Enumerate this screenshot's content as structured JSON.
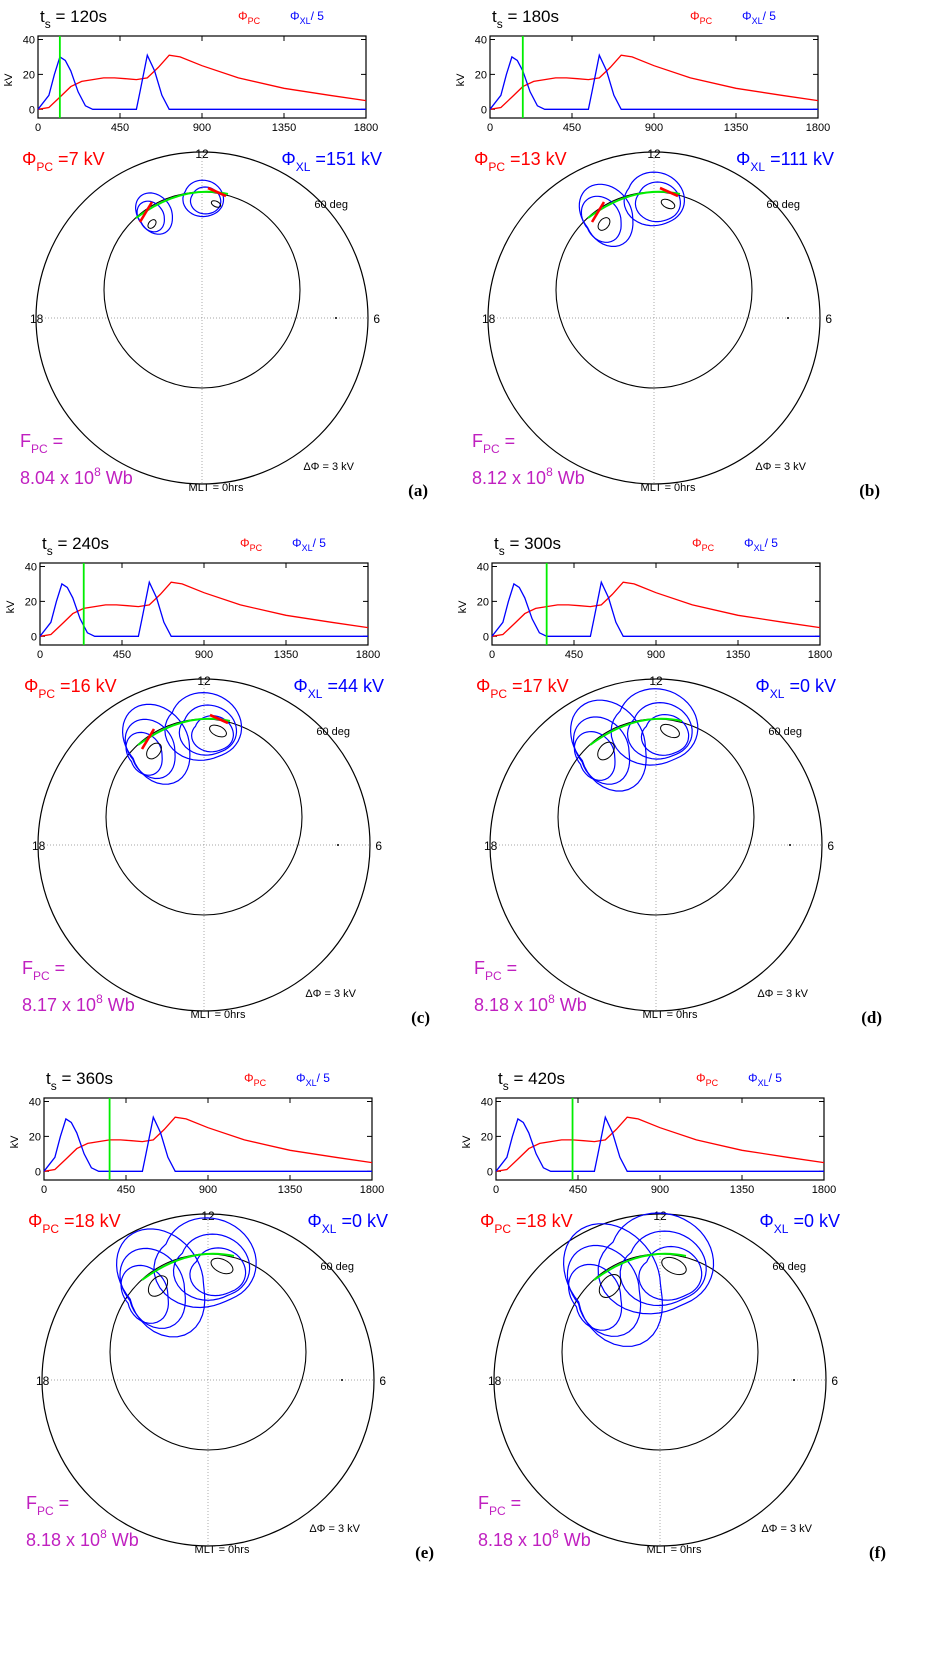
{
  "common": {
    "clock_top": "12",
    "clock_left": "18",
    "clock_right": "6",
    "lat_label": "60 deg",
    "mlt_label": "MLT = 0hrs",
    "delta_label": "ΔΦ = 3 kV",
    "fpc_label": "F",
    "fpc_sub": "PC",
    "fpc_eq": " =",
    "fpc_unit": " Wb",
    "phi": "Φ",
    "pc_sub": "PC",
    "xl_sub": "XL",
    "kv": " kV",
    "legend_pc_sym": "Φ",
    "legend_pc_sub": "PC",
    "legend_xl_sym": "Φ",
    "legend_xl_sub": "XL",
    "legend_xl_div": "/ 5",
    "ts_t": "t",
    "ts_sub": "s",
    "ts_eq": " = ",
    "ts_unit": "s",
    "ylabel": "kV",
    "colors": {
      "pc": "#ff0000",
      "xl": "#0000ff",
      "marker": "#00ee00",
      "fpc": "#c020c0"
    }
  },
  "chart_data": [
    {
      "panel": "(a)",
      "ts": "120",
      "phi_pc": "7",
      "phi_xl": "151",
      "fpc_mant": "8.04 x 10",
      "fpc_exp": "8",
      "type": "line",
      "xlim": [
        0,
        1800
      ],
      "ylim": [
        -5,
        42
      ],
      "xticks": [
        "0",
        "450",
        "900",
        "1350",
        "1800"
      ],
      "yticks": [
        "0",
        "20",
        "40"
      ],
      "marker_x": 120,
      "series": [
        {
          "name": "Φ_PC",
          "x": [
            0,
            60,
            120,
            180,
            240,
            300,
            360,
            420,
            480,
            540,
            600,
            660,
            720,
            780,
            900,
            1100,
            1350,
            1600,
            1800
          ],
          "y": [
            0,
            1,
            7,
            13,
            16,
            17,
            18,
            18,
            17.5,
            17,
            18,
            24,
            31,
            30,
            25,
            18,
            12,
            8,
            5
          ]
        },
        {
          "name": "Φ_XL / 5",
          "x": [
            0,
            60,
            90,
            120,
            150,
            180,
            220,
            260,
            300,
            540,
            560,
            600,
            640,
            680,
            720,
            1800
          ],
          "y": [
            0,
            8,
            20,
            30,
            28,
            22,
            10,
            2,
            0,
            0,
            10,
            31,
            22,
            8,
            0,
            0
          ]
        }
      ]
    },
    {
      "panel": "(b)",
      "ts": "180",
      "phi_pc": "13",
      "phi_xl": "111",
      "fpc_mant": "8.12 x 10",
      "fpc_exp": "8",
      "type": "line",
      "xlim": [
        0,
        1800
      ],
      "ylim": [
        -5,
        42
      ],
      "xticks": [
        "0",
        "450",
        "900",
        "1350",
        "1800"
      ],
      "yticks": [
        "0",
        "20",
        "40"
      ],
      "marker_x": 180,
      "series": [
        {
          "name": "Φ_PC",
          "x": [
            0,
            60,
            120,
            180,
            240,
            300,
            360,
            420,
            480,
            540,
            600,
            660,
            720,
            780,
            900,
            1100,
            1350,
            1600,
            1800
          ],
          "y": [
            0,
            1,
            7,
            13,
            16,
            17,
            18,
            18,
            17.5,
            17,
            18,
            24,
            31,
            30,
            25,
            18,
            12,
            8,
            5
          ]
        },
        {
          "name": "Φ_XL / 5",
          "x": [
            0,
            60,
            90,
            120,
            150,
            180,
            220,
            260,
            300,
            540,
            560,
            600,
            640,
            680,
            720,
            1800
          ],
          "y": [
            0,
            8,
            20,
            30,
            28,
            22,
            10,
            2,
            0,
            0,
            10,
            31,
            22,
            8,
            0,
            0
          ]
        }
      ]
    },
    {
      "panel": "(c)",
      "ts": "240",
      "phi_pc": "16",
      "phi_xl": "44",
      "fpc_mant": "8.17 x 10",
      "fpc_exp": "8",
      "type": "line",
      "xlim": [
        0,
        1800
      ],
      "ylim": [
        -5,
        42
      ],
      "xticks": [
        "0",
        "450",
        "900",
        "1350",
        "1800"
      ],
      "yticks": [
        "0",
        "20",
        "40"
      ],
      "marker_x": 240,
      "series": [
        {
          "name": "Φ_PC",
          "x": [
            0,
            60,
            120,
            180,
            240,
            300,
            360,
            420,
            480,
            540,
            600,
            660,
            720,
            780,
            900,
            1100,
            1350,
            1600,
            1800
          ],
          "y": [
            0,
            1,
            7,
            13,
            16,
            17,
            18,
            18,
            17.5,
            17,
            18,
            24,
            31,
            30,
            25,
            18,
            12,
            8,
            5
          ]
        },
        {
          "name": "Φ_XL / 5",
          "x": [
            0,
            60,
            90,
            120,
            150,
            180,
            220,
            260,
            300,
            540,
            560,
            600,
            640,
            680,
            720,
            1800
          ],
          "y": [
            0,
            8,
            20,
            30,
            28,
            22,
            10,
            2,
            0,
            0,
            10,
            31,
            22,
            8,
            0,
            0
          ]
        }
      ]
    },
    {
      "panel": "(d)",
      "ts": "300",
      "phi_pc": "17",
      "phi_xl": "0",
      "fpc_mant": "8.18 x 10",
      "fpc_exp": "8",
      "type": "line",
      "xlim": [
        0,
        1800
      ],
      "ylim": [
        -5,
        42
      ],
      "xticks": [
        "0",
        "450",
        "900",
        "1350",
        "1800"
      ],
      "yticks": [
        "0",
        "20",
        "40"
      ],
      "marker_x": 300,
      "series": [
        {
          "name": "Φ_PC",
          "x": [
            0,
            60,
            120,
            180,
            240,
            300,
            360,
            420,
            480,
            540,
            600,
            660,
            720,
            780,
            900,
            1100,
            1350,
            1600,
            1800
          ],
          "y": [
            0,
            1,
            7,
            13,
            16,
            17,
            18,
            18,
            17.5,
            17,
            18,
            24,
            31,
            30,
            25,
            18,
            12,
            8,
            5
          ]
        },
        {
          "name": "Φ_XL / 5",
          "x": [
            0,
            60,
            90,
            120,
            150,
            180,
            220,
            260,
            300,
            540,
            560,
            600,
            640,
            680,
            720,
            1800
          ],
          "y": [
            0,
            8,
            20,
            30,
            28,
            22,
            10,
            2,
            0,
            0,
            10,
            31,
            22,
            8,
            0,
            0
          ]
        }
      ]
    },
    {
      "panel": "(e)",
      "ts": "360",
      "phi_pc": "18",
      "phi_xl": "0",
      "fpc_mant": "8.18 x 10",
      "fpc_exp": "8",
      "type": "line",
      "xlim": [
        0,
        1800
      ],
      "ylim": [
        -5,
        42
      ],
      "xticks": [
        "0",
        "450",
        "900",
        "1350",
        "1800"
      ],
      "yticks": [
        "0",
        "20",
        "40"
      ],
      "marker_x": 360,
      "series": [
        {
          "name": "Φ_PC",
          "x": [
            0,
            60,
            120,
            180,
            240,
            300,
            360,
            420,
            480,
            540,
            600,
            660,
            720,
            780,
            900,
            1100,
            1350,
            1600,
            1800
          ],
          "y": [
            0,
            1,
            7,
            13,
            16,
            17,
            18,
            18,
            17.5,
            17,
            18,
            24,
            31,
            30,
            25,
            18,
            12,
            8,
            5
          ]
        },
        {
          "name": "Φ_XL / 5",
          "x": [
            0,
            60,
            90,
            120,
            150,
            180,
            220,
            260,
            300,
            540,
            560,
            600,
            640,
            680,
            720,
            1800
          ],
          "y": [
            0,
            8,
            20,
            30,
            28,
            22,
            10,
            2,
            0,
            0,
            10,
            31,
            22,
            8,
            0,
            0
          ]
        }
      ]
    },
    {
      "panel": "(f)",
      "ts": "420",
      "phi_pc": "18",
      "phi_xl": "0",
      "fpc_mant": "8.18 x 10",
      "fpc_exp": "8",
      "type": "line",
      "xlim": [
        0,
        1800
      ],
      "ylim": [
        -5,
        42
      ],
      "xticks": [
        "0",
        "450",
        "900",
        "1350",
        "1800"
      ],
      "yticks": [
        "0",
        "20",
        "40"
      ],
      "marker_x": 420,
      "series": [
        {
          "name": "Φ_PC",
          "x": [
            0,
            60,
            120,
            180,
            240,
            300,
            360,
            420,
            480,
            540,
            600,
            660,
            720,
            780,
            900,
            1100,
            1350,
            1600,
            1800
          ],
          "y": [
            0,
            1,
            7,
            13,
            16,
            17,
            18,
            18,
            17.5,
            17,
            18,
            24,
            31,
            30,
            25,
            18,
            12,
            8,
            5
          ]
        },
        {
          "name": "Φ_XL / 5",
          "x": [
            0,
            60,
            90,
            120,
            150,
            180,
            220,
            260,
            300,
            540,
            560,
            600,
            640,
            680,
            720,
            1800
          ],
          "y": [
            0,
            8,
            20,
            30,
            28,
            22,
            10,
            2,
            0,
            0,
            10,
            31,
            22,
            8,
            0,
            0
          ]
        }
      ]
    }
  ]
}
